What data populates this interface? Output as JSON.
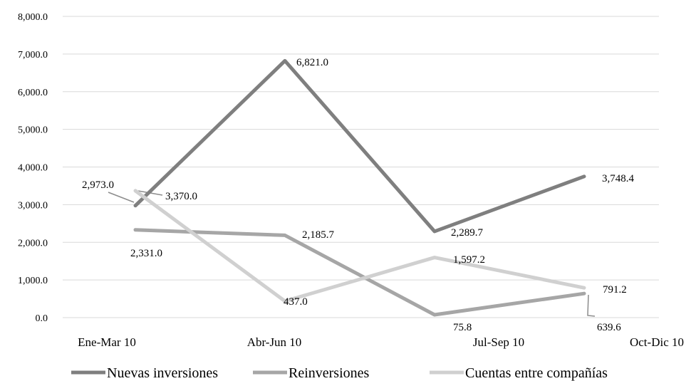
{
  "chart_data": {
    "type": "line",
    "categories": [
      "Ene-Mar 10",
      "Abr-Jun 10",
      "Jul-Sep 10",
      "Oct-Dic 10"
    ],
    "series": [
      {
        "name": "Nuevas inversiones",
        "color": "#7f7f7f",
        "values": [
          2973.0,
          6821.0,
          2289.7,
          3748.4
        ],
        "labels": [
          "2,973.0",
          "6,821.0",
          "2,289.7",
          "3,748.4"
        ]
      },
      {
        "name": "Reinversiones",
        "color": "#a6a6a6",
        "values": [
          2331.0,
          2185.7,
          75.8,
          639.6
        ],
        "labels": [
          "2,331.0",
          "2,185.7",
          "75.8",
          "639.6"
        ]
      },
      {
        "name": "Cuentas entre compañías",
        "color": "#d0d0d0",
        "values": [
          3370.0,
          437.0,
          1597.2,
          791.2
        ],
        "labels": [
          "3,370.0",
          "437.0",
          "1,597.2",
          "791.2"
        ]
      }
    ],
    "y_ticks": [
      "0.0",
      "1,000.0",
      "2,000.0",
      "3,000.0",
      "4,000.0",
      "5,000.0",
      "6,000.0",
      "7,000.0",
      "8,000.0"
    ],
    "ylim": [
      0,
      8000
    ],
    "grid": true,
    "legend_position": "bottom"
  }
}
